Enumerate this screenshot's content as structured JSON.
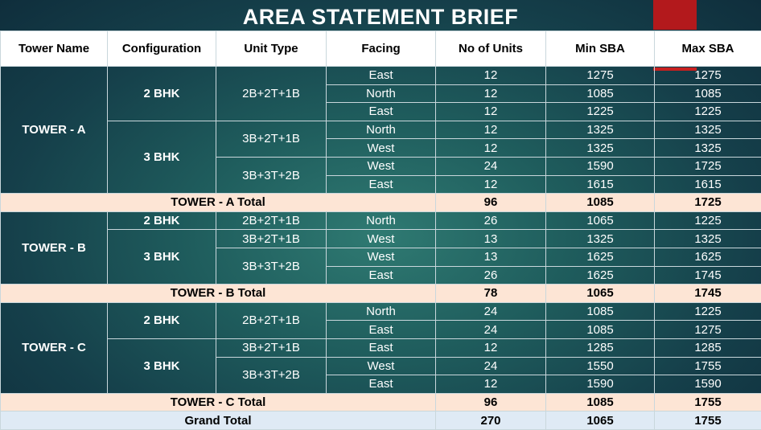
{
  "title": "AREA STATEMENT BRIEF",
  "headers": [
    "Tower Name",
    "Configuration",
    "Unit Type",
    "Facing",
    "No of Units",
    "Min SBA",
    "Max SBA"
  ],
  "towers": [
    {
      "name": "TOWER - A",
      "configs": [
        {
          "bhk": "2 BHK",
          "types": [
            {
              "unit_type": "2B+2T+1B",
              "rows": [
                {
                  "facing": "East",
                  "units": "12",
                  "min": "1275",
                  "max": "1275"
                },
                {
                  "facing": "North",
                  "units": "12",
                  "min": "1085",
                  "max": "1085"
                },
                {
                  "facing": "East",
                  "units": "12",
                  "min": "1225",
                  "max": "1225"
                }
              ]
            }
          ]
        },
        {
          "bhk": "3 BHK",
          "types": [
            {
              "unit_type": "3B+2T+1B",
              "rows": [
                {
                  "facing": "North",
                  "units": "12",
                  "min": "1325",
                  "max": "1325"
                },
                {
                  "facing": "West",
                  "units": "12",
                  "min": "1325",
                  "max": "1325"
                }
              ]
            },
            {
              "unit_type": "3B+3T+2B",
              "rows": [
                {
                  "facing": "West",
                  "units": "24",
                  "min": "1590",
                  "max": "1725"
                },
                {
                  "facing": "East",
                  "units": "12",
                  "min": "1615",
                  "max": "1615"
                }
              ]
            }
          ]
        }
      ],
      "total": {
        "label": "TOWER - A Total",
        "units": "96",
        "min": "1085",
        "max": "1725"
      }
    },
    {
      "name": "TOWER - B",
      "configs": [
        {
          "bhk": "2 BHK",
          "types": [
            {
              "unit_type": "2B+2T+1B",
              "rows": [
                {
                  "facing": "North",
                  "units": "26",
                  "min": "1065",
                  "max": "1225"
                }
              ]
            }
          ]
        },
        {
          "bhk": "3 BHK",
          "types": [
            {
              "unit_type": "3B+2T+1B",
              "rows": [
                {
                  "facing": "West",
                  "units": "13",
                  "min": "1325",
                  "max": "1325"
                }
              ]
            },
            {
              "unit_type": "3B+3T+2B",
              "rows": [
                {
                  "facing": "West",
                  "units": "13",
                  "min": "1625",
                  "max": "1625"
                },
                {
                  "facing": "East",
                  "units": "26",
                  "min": "1625",
                  "max": "1745"
                }
              ]
            }
          ]
        }
      ],
      "total": {
        "label": "TOWER - B Total",
        "units": "78",
        "min": "1065",
        "max": "1745"
      }
    },
    {
      "name": "TOWER - C",
      "configs": [
        {
          "bhk": "2 BHK",
          "types": [
            {
              "unit_type": "2B+2T+1B",
              "rows": [
                {
                  "facing": "North",
                  "units": "24",
                  "min": "1085",
                  "max": "1225"
                },
                {
                  "facing": "East",
                  "units": "24",
                  "min": "1085",
                  "max": "1275"
                }
              ]
            }
          ]
        },
        {
          "bhk": "3 BHK",
          "types": [
            {
              "unit_type": "3B+2T+1B",
              "rows": [
                {
                  "facing": "East",
                  "units": "12",
                  "min": "1285",
                  "max": "1285"
                }
              ]
            },
            {
              "unit_type": "3B+3T+2B",
              "rows": [
                {
                  "facing": "West",
                  "units": "24",
                  "min": "1550",
                  "max": "1755"
                },
                {
                  "facing": "East",
                  "units": "12",
                  "min": "1590",
                  "max": "1590"
                }
              ]
            }
          ]
        }
      ],
      "total": {
        "label": "TOWER - C Total",
        "units": "96",
        "min": "1085",
        "max": "1755"
      }
    }
  ],
  "grand_total": {
    "label": "Grand Total",
    "units": "270",
    "min": "1065",
    "max": "1755"
  },
  "colors": {
    "accent_red": "#b3191c",
    "total_row": "#fde5d5",
    "grand_row": "#dfeaf5",
    "teal_bg": "#1f5d5d"
  }
}
